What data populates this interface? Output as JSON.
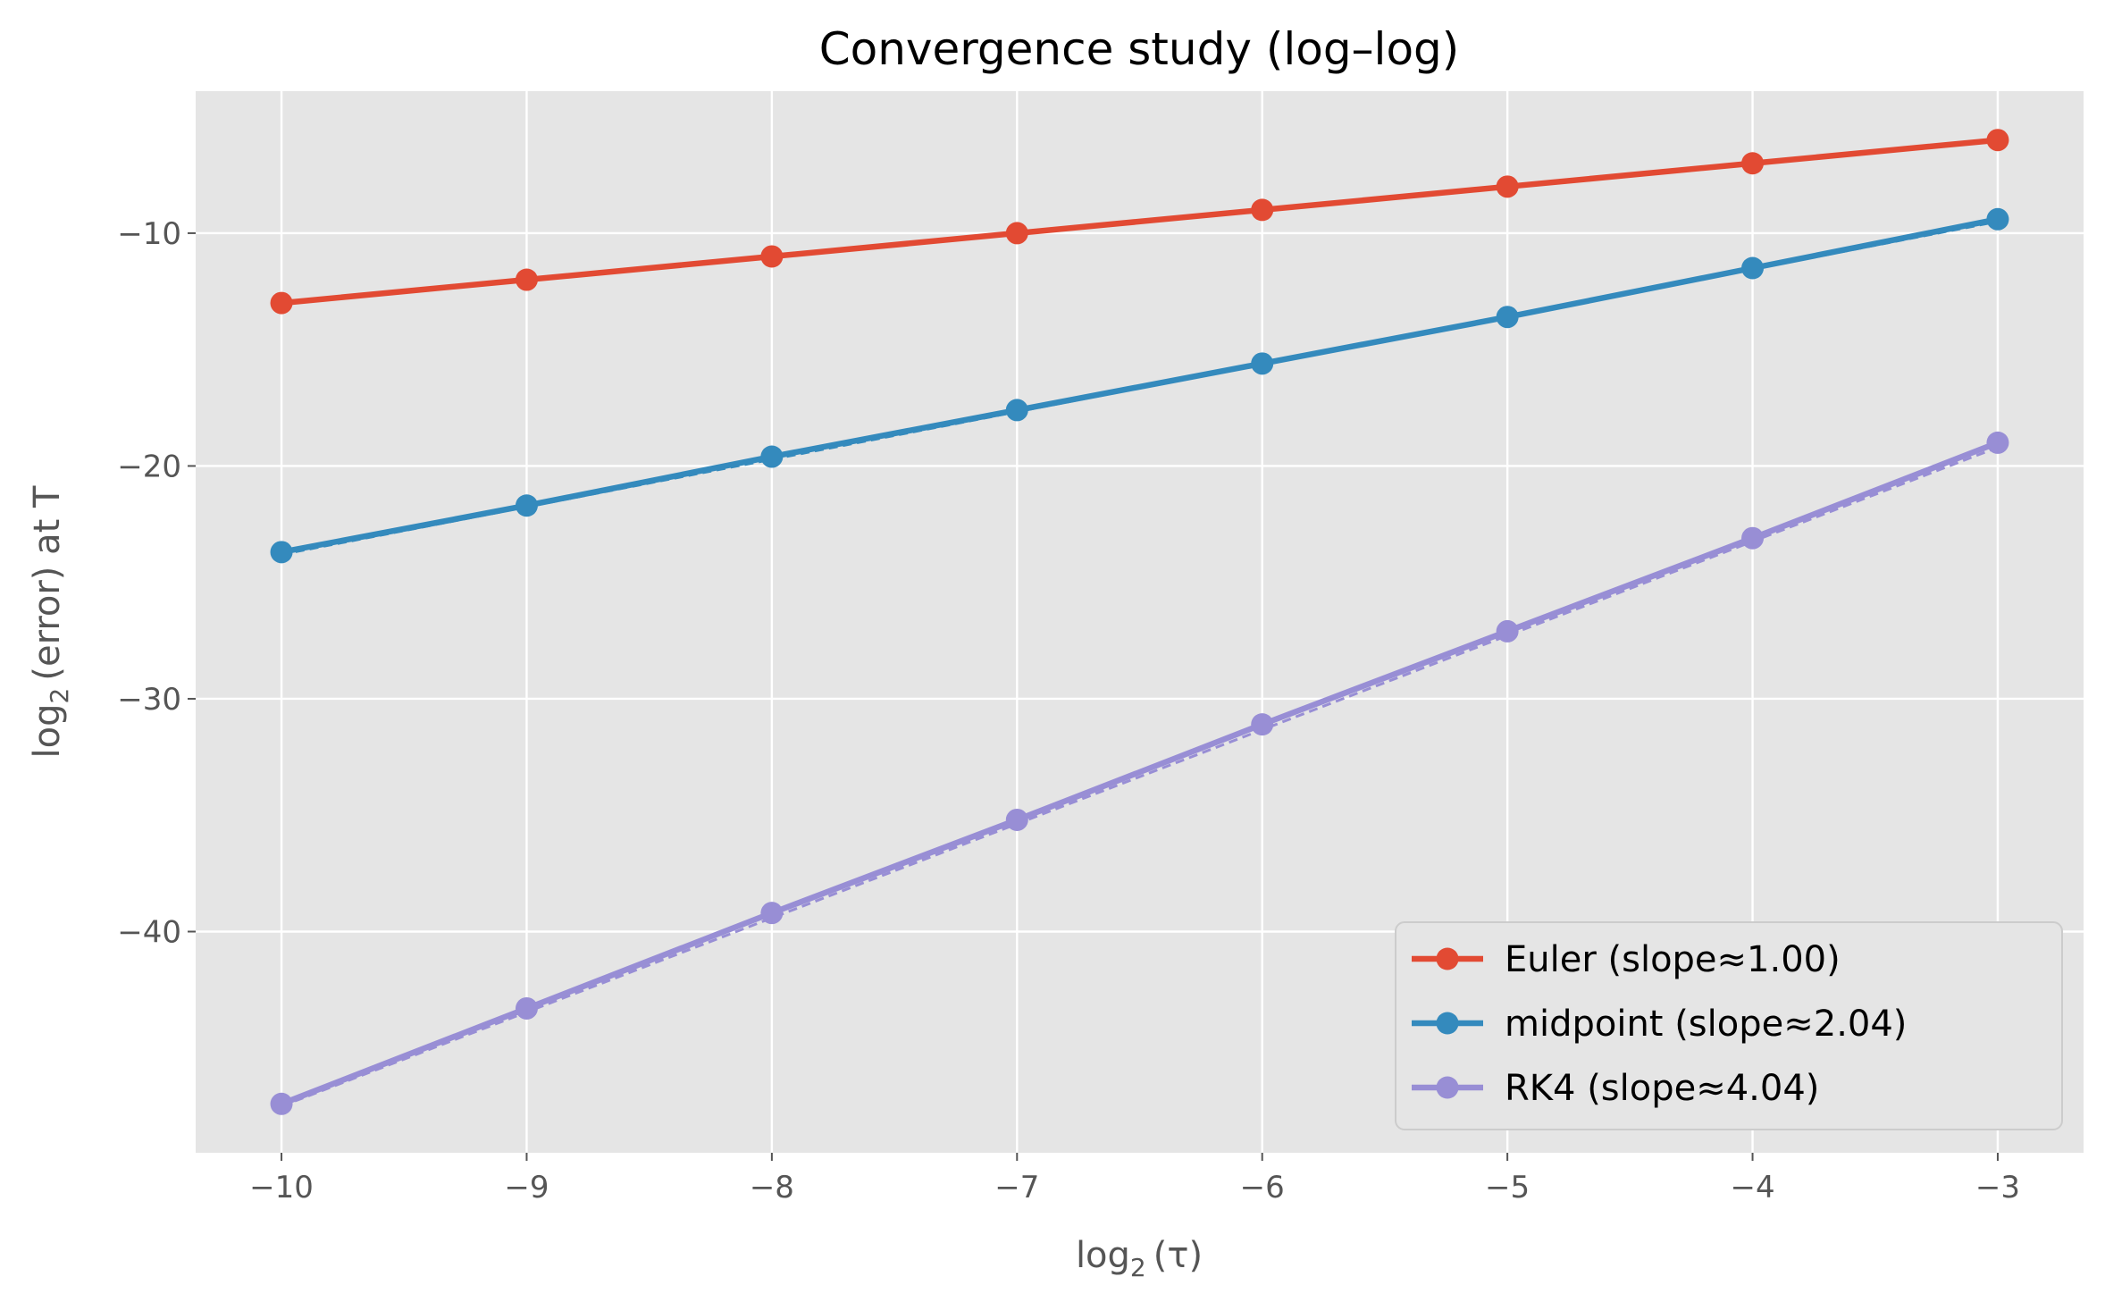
{
  "chart_data": {
    "type": "line",
    "title": "Convergence study (log–log)",
    "xlabel_main": "log",
    "xlabel_sub": "2",
    "xlabel_tail": "(τ)",
    "ylabel_main": "log",
    "ylabel_sub": "2",
    "ylabel_tail": "(error) at T",
    "xlim": [
      -10.35,
      -2.65
    ],
    "ylim": [
      -49.5,
      -3.9
    ],
    "x_ticks": [
      -10,
      -9,
      -8,
      -7,
      -6,
      -5,
      -4,
      -3
    ],
    "x_tick_labels": [
      "−10",
      "−9",
      "−8",
      "−7",
      "−6",
      "−5",
      "−4",
      "−3"
    ],
    "y_ticks": [
      -40,
      -30,
      -20,
      -10
    ],
    "y_tick_labels": [
      "−40",
      "−30",
      "−20",
      "−10"
    ],
    "grid": true,
    "legend_position": "lower-right",
    "x": [
      -10,
      -9,
      -8,
      -7,
      -6,
      -5,
      -4,
      -3
    ],
    "series": [
      {
        "name": "Euler (slope≈1.00)",
        "color": "#E24A33",
        "values": [
          -13.0,
          -12.0,
          -11.0,
          -10.0,
          -9.0,
          -8.0,
          -7.0,
          -6.0
        ]
      },
      {
        "name": "midpoint (slope≈2.04)",
        "color": "#348ABD",
        "values": [
          -23.7,
          -21.7,
          -19.6,
          -17.6,
          -15.6,
          -13.6,
          -11.5,
          -9.4
        ]
      },
      {
        "name": "RK4 (slope≈4.04)",
        "color": "#988ED5",
        "values": [
          -47.4,
          -43.3,
          -39.2,
          -35.2,
          -31.1,
          -27.1,
          -23.1,
          -19.0
        ]
      }
    ],
    "fit_lines": [
      {
        "color": "#E24A33",
        "values": [
          -13.0,
          -6.0
        ]
      },
      {
        "color": "#348ABD",
        "values": [
          -23.8,
          -9.5
        ]
      },
      {
        "color": "#988ED5",
        "values": [
          -47.5,
          -19.2
        ]
      }
    ]
  }
}
